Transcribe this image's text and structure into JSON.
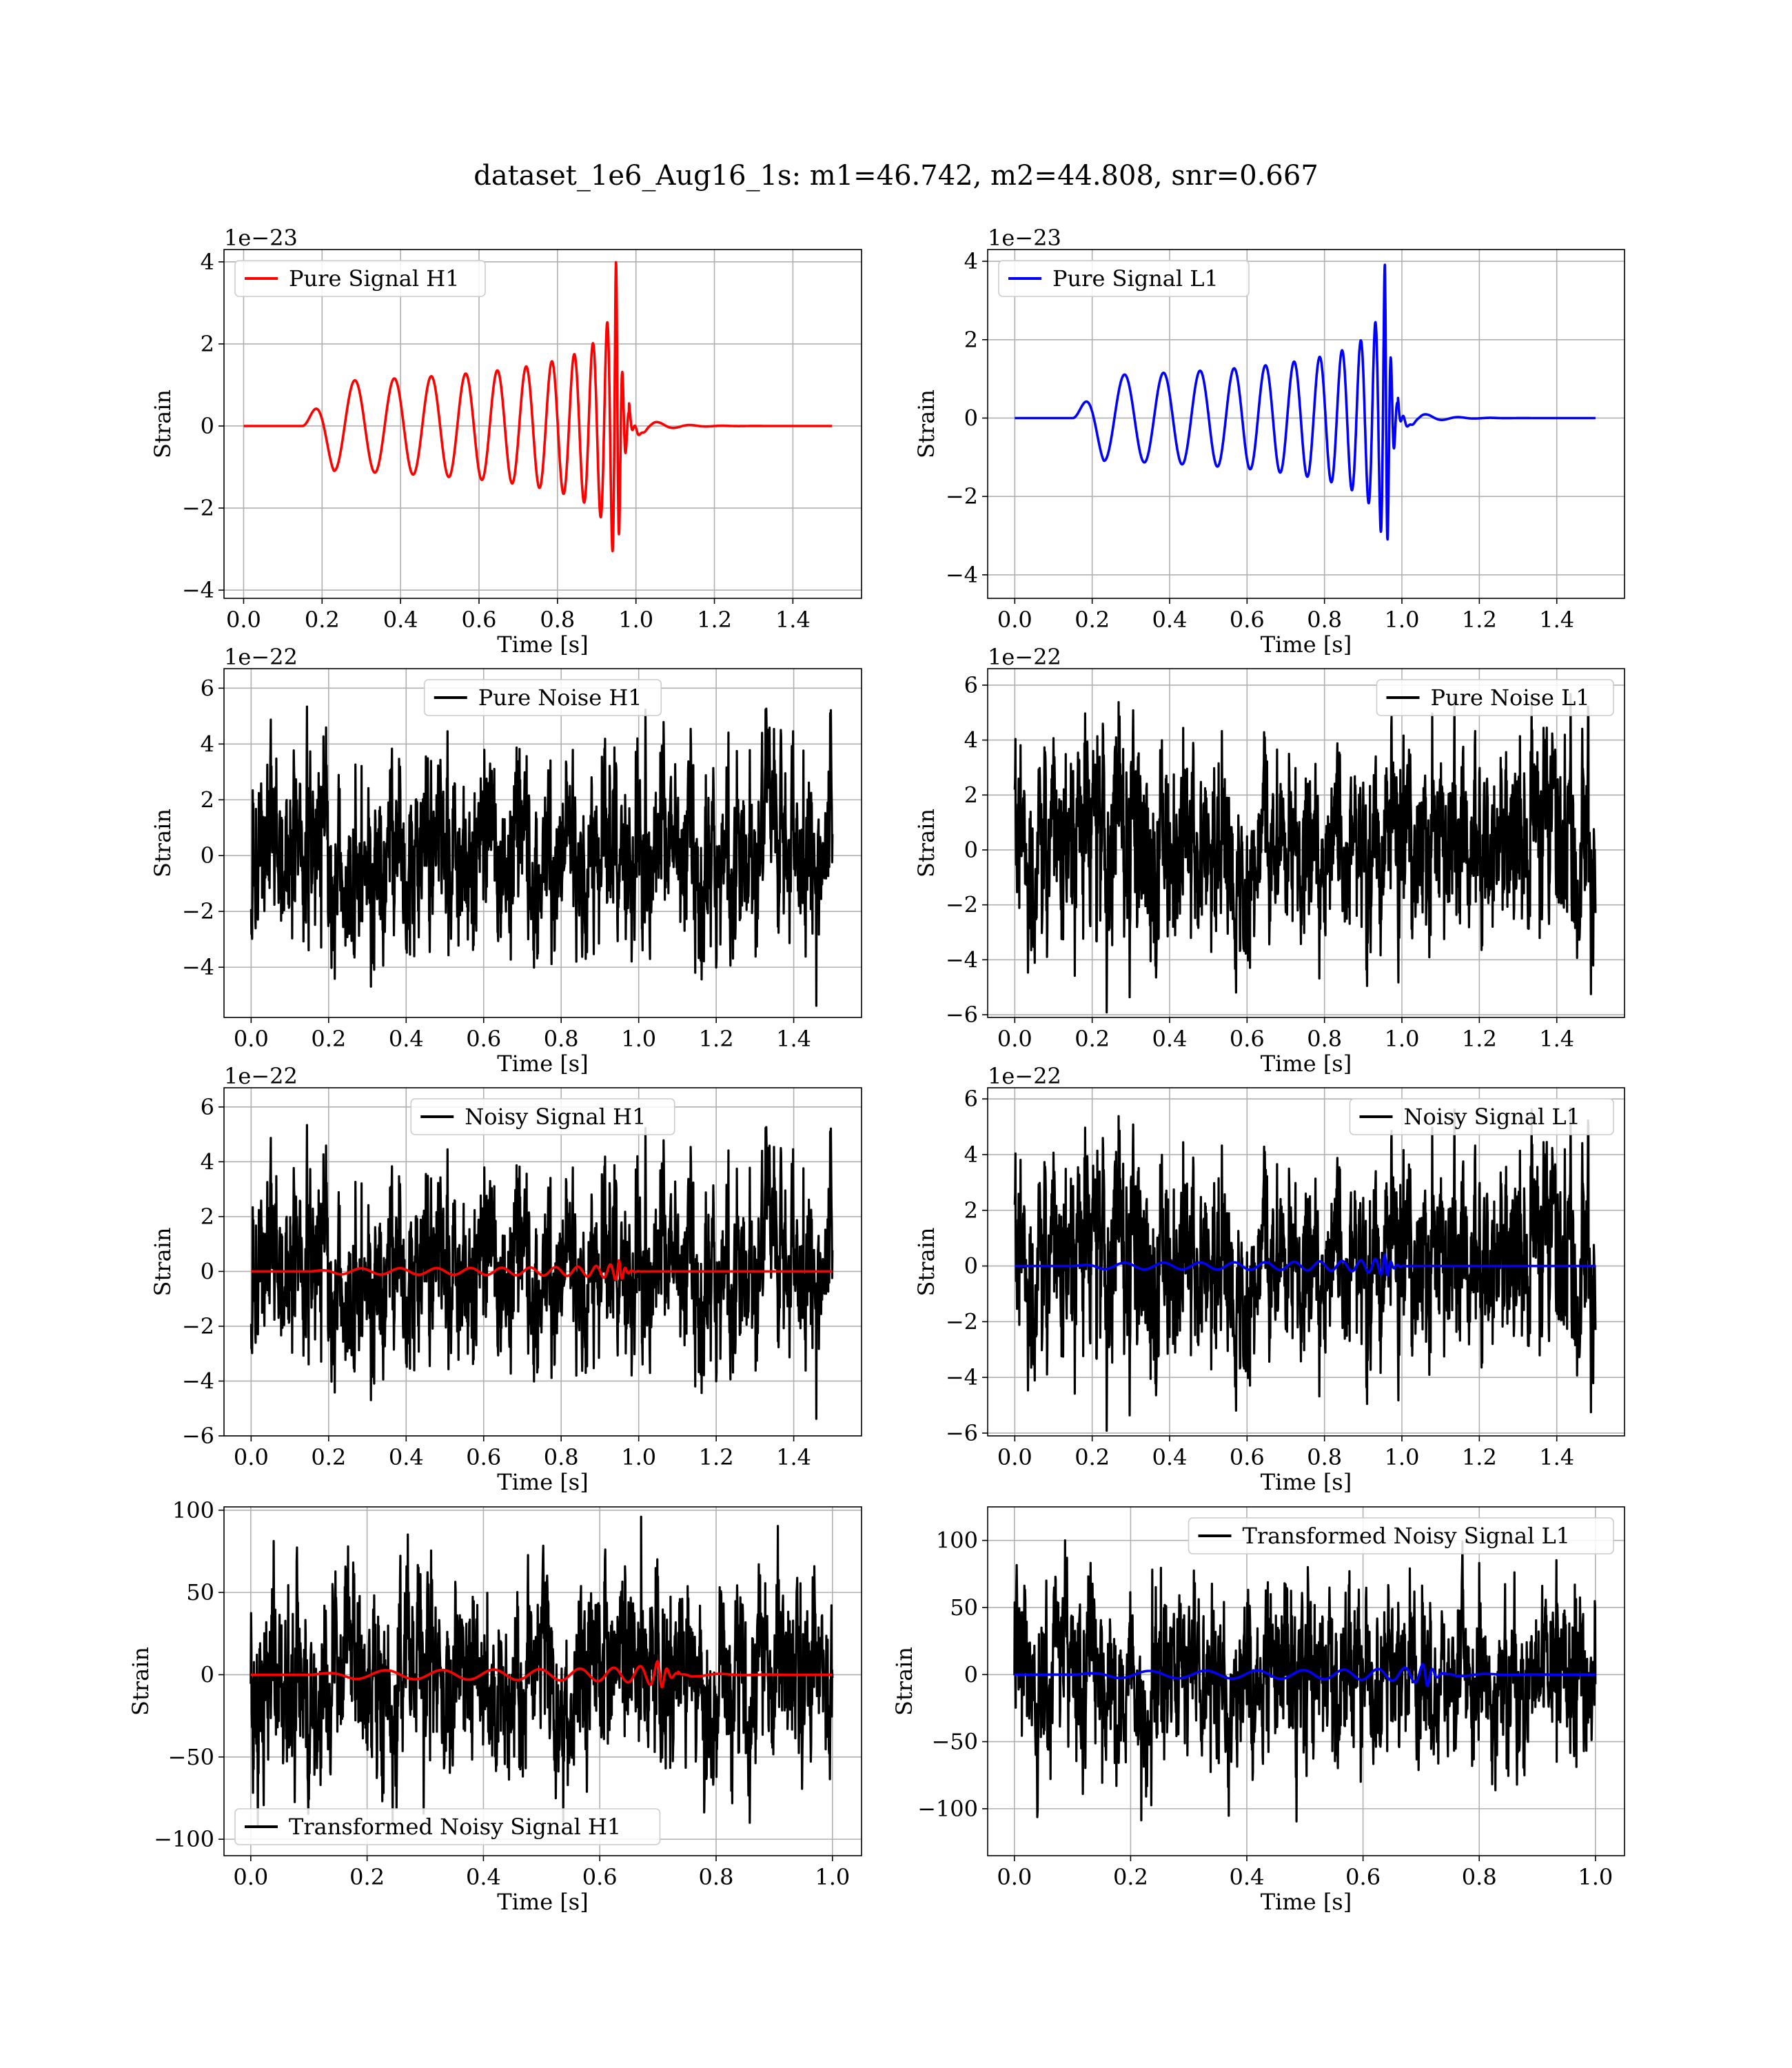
{
  "figure": {
    "title": "dataset_1e6_Aug16_1s: m1=46.742, m2=44.808, snr=0.667"
  },
  "colors": {
    "h1_signal": "#ff0000",
    "l1_signal": "#0000ff",
    "noise": "#000000",
    "grid": "#b0b0b0"
  },
  "chart_data": [
    {
      "type": "line",
      "panel": "pure-signal-h1",
      "xlabel": "Time [s]",
      "ylabel": "Strain",
      "offset_text": "1e−23",
      "xlim": [
        -0.05,
        1.575
      ],
      "ylim": [
        -4.2,
        4.3
      ],
      "x_ticks": [
        0.0,
        0.2,
        0.4,
        0.6,
        0.8,
        1.0,
        1.2,
        1.4
      ],
      "x_tick_labels": [
        "0.0",
        "0.2",
        "0.4",
        "0.6",
        "0.8",
        "1.0",
        "1.2",
        "1.4"
      ],
      "y_ticks": [
        -4,
        -2,
        0,
        2,
        4
      ],
      "y_tick_labels": [
        "−4",
        "−2",
        "0",
        "2",
        "4"
      ],
      "legend": {
        "position": "upper-left",
        "entries": [
          {
            "label": "Pure Signal H1",
            "color": "#ff0000"
          }
        ]
      },
      "series": [
        {
          "kind": "chirp",
          "color": "#ff0000",
          "t_start": 0.15,
          "t_merge": 0.952,
          "t_end": 1.5,
          "amplitude": 4.0,
          "ringdown_amp": 0.08
        }
      ]
    },
    {
      "type": "line",
      "panel": "pure-signal-l1",
      "xlabel": "Time [s]",
      "ylabel": "Strain",
      "offset_text": "1e−23",
      "xlim": [
        -0.07,
        1.575
      ],
      "ylim": [
        -4.6,
        4.3
      ],
      "x_ticks": [
        0.0,
        0.2,
        0.4,
        0.6,
        0.8,
        1.0,
        1.2,
        1.4
      ],
      "x_tick_labels": [
        "0.0",
        "0.2",
        "0.4",
        "0.6",
        "0.8",
        "1.0",
        "1.2",
        "1.4"
      ],
      "y_ticks": [
        -4,
        -2,
        0,
        2,
        4
      ],
      "y_tick_labels": [
        "−4",
        "−2",
        "0",
        "2",
        "4"
      ],
      "legend": {
        "position": "upper-left",
        "entries": [
          {
            "label": "Pure Signal L1",
            "color": "#0000ff"
          }
        ]
      },
      "series": [
        {
          "kind": "chirp",
          "color": "#0000ff",
          "t_start": 0.15,
          "t_merge": 0.96,
          "t_end": 1.5,
          "amplitude": 4.0,
          "ringdown_amp": 0.08
        }
      ]
    },
    {
      "type": "line",
      "panel": "pure-noise-h1",
      "xlabel": "Time [s]",
      "ylabel": "Strain",
      "offset_text": "1e−22",
      "xlim": [
        -0.07,
        1.575
      ],
      "ylim": [
        -5.8,
        6.7
      ],
      "x_ticks": [
        0.0,
        0.2,
        0.4,
        0.6,
        0.8,
        1.0,
        1.2,
        1.4
      ],
      "x_tick_labels": [
        "0.0",
        "0.2",
        "0.4",
        "0.6",
        "0.8",
        "1.0",
        "1.2",
        "1.4"
      ],
      "y_ticks": [
        -4,
        -2,
        0,
        2,
        4,
        6
      ],
      "y_tick_labels": [
        "−4",
        "−2",
        "0",
        "2",
        "4",
        "6"
      ],
      "legend": {
        "position": "upper-center",
        "entries": [
          {
            "label": "Pure Noise H1",
            "color": "#000000"
          }
        ]
      },
      "series": [
        {
          "kind": "noise",
          "color": "#000000",
          "t_start": 0.0,
          "t_end": 1.5,
          "sigma": 1.6,
          "clip": 6.2,
          "seed": 11
        }
      ]
    },
    {
      "type": "line",
      "panel": "pure-noise-l1",
      "xlabel": "Time [s]",
      "ylabel": "Strain",
      "offset_text": "1e−22",
      "xlim": [
        -0.07,
        1.575
      ],
      "ylim": [
        -6.1,
        6.6
      ],
      "x_ticks": [
        0.0,
        0.2,
        0.4,
        0.6,
        0.8,
        1.0,
        1.2,
        1.4
      ],
      "x_tick_labels": [
        "0.0",
        "0.2",
        "0.4",
        "0.6",
        "0.8",
        "1.0",
        "1.2",
        "1.4"
      ],
      "y_ticks": [
        -6,
        -4,
        -2,
        0,
        2,
        4,
        6
      ],
      "y_tick_labels": [
        "−6",
        "−4",
        "−2",
        "0",
        "2",
        "4",
        "6"
      ],
      "legend": {
        "position": "upper-right",
        "entries": [
          {
            "label": "Pure Noise L1",
            "color": "#000000"
          }
        ]
      },
      "series": [
        {
          "kind": "noise",
          "color": "#000000",
          "t_start": 0.0,
          "t_end": 1.5,
          "sigma": 1.7,
          "clip": 6.0,
          "seed": 23
        }
      ]
    },
    {
      "type": "line",
      "panel": "noisy-signal-h1",
      "xlabel": "Time [s]",
      "ylabel": "Strain",
      "offset_text": "1e−22",
      "xlim": [
        -0.07,
        1.575
      ],
      "ylim": [
        -6.0,
        6.7
      ],
      "x_ticks": [
        0.0,
        0.2,
        0.4,
        0.6,
        0.8,
        1.0,
        1.2,
        1.4
      ],
      "x_tick_labels": [
        "0.0",
        "0.2",
        "0.4",
        "0.6",
        "0.8",
        "1.0",
        "1.2",
        "1.4"
      ],
      "y_ticks": [
        -6,
        -4,
        -2,
        0,
        2,
        4,
        6
      ],
      "y_tick_labels": [
        "−6",
        "−4",
        "−2",
        "0",
        "2",
        "4",
        "6"
      ],
      "legend": {
        "position": "upper-center",
        "entries": [
          {
            "label": "Noisy Signal H1",
            "color": "#000000"
          }
        ]
      },
      "series": [
        {
          "kind": "noise",
          "color": "#000000",
          "t_start": 0.0,
          "t_end": 1.5,
          "sigma": 1.6,
          "clip": 6.2,
          "seed": 11
        },
        {
          "kind": "chirp",
          "color": "#ff0000",
          "t_start": 0.15,
          "t_merge": 0.952,
          "t_end": 1.5,
          "amplitude": 0.4,
          "ringdown_amp": 0.01
        }
      ]
    },
    {
      "type": "line",
      "panel": "noisy-signal-l1",
      "xlabel": "Time [s]",
      "ylabel": "Strain",
      "offset_text": "1e−22",
      "xlim": [
        -0.07,
        1.575
      ],
      "ylim": [
        -6.1,
        6.4
      ],
      "x_ticks": [
        0.0,
        0.2,
        0.4,
        0.6,
        0.8,
        1.0,
        1.2,
        1.4
      ],
      "x_tick_labels": [
        "0.0",
        "0.2",
        "0.4",
        "0.6",
        "0.8",
        "1.0",
        "1.2",
        "1.4"
      ],
      "y_ticks": [
        -6,
        -4,
        -2,
        0,
        2,
        4,
        6
      ],
      "y_tick_labels": [
        "−6",
        "−4",
        "−2",
        "0",
        "2",
        "4",
        "6"
      ],
      "legend": {
        "position": "upper-right",
        "entries": [
          {
            "label": "Noisy Signal L1",
            "color": "#000000"
          }
        ]
      },
      "series": [
        {
          "kind": "noise",
          "color": "#000000",
          "t_start": 0.0,
          "t_end": 1.5,
          "sigma": 1.7,
          "clip": 6.0,
          "seed": 23
        },
        {
          "kind": "chirp",
          "color": "#0000ff",
          "t_start": 0.15,
          "t_merge": 0.96,
          "t_end": 1.5,
          "amplitude": 0.42,
          "ringdown_amp": 0.01
        }
      ]
    },
    {
      "type": "line",
      "panel": "transformed-noisy-signal-h1",
      "xlabel": "Time [s]",
      "ylabel": "Strain",
      "offset_text": "",
      "xlim": [
        -0.046,
        1.05
      ],
      "ylim": [
        -110,
        102
      ],
      "x_ticks": [
        0.0,
        0.2,
        0.4,
        0.6,
        0.8,
        1.0
      ],
      "x_tick_labels": [
        "0.0",
        "0.2",
        "0.4",
        "0.6",
        "0.8",
        "1.0"
      ],
      "y_ticks": [
        -100,
        -50,
        0,
        50,
        100
      ],
      "y_tick_labels": [
        "−100",
        "−50",
        "0",
        "50",
        "100"
      ],
      "legend": {
        "position": "lower-left",
        "entries": [
          {
            "label": "Transformed Noisy Signal H1",
            "color": "#000000"
          }
        ]
      },
      "series": [
        {
          "kind": "noise",
          "color": "#000000",
          "t_start": 0.0,
          "t_end": 1.0,
          "sigma": 28,
          "clip": 98,
          "seed": 37
        },
        {
          "kind": "chirp",
          "color": "#ff0000",
          "t_start": 0.1,
          "t_merge": 0.705,
          "t_end": 1.0,
          "amplitude": 9.0,
          "ringdown_amp": 0.2
        }
      ]
    },
    {
      "type": "line",
      "panel": "transformed-noisy-signal-l1",
      "xlabel": "Time [s]",
      "ylabel": "Strain",
      "offset_text": "",
      "xlim": [
        -0.046,
        1.05
      ],
      "ylim": [
        -135,
        125
      ],
      "x_ticks": [
        0.0,
        0.2,
        0.4,
        0.6,
        0.8,
        1.0
      ],
      "x_tick_labels": [
        "0.0",
        "0.2",
        "0.4",
        "0.6",
        "0.8",
        "1.0"
      ],
      "y_ticks": [
        -100,
        -50,
        0,
        50,
        100
      ],
      "y_tick_labels": [
        "−100",
        "−50",
        "0",
        "50",
        "100"
      ],
      "legend": {
        "position": "upper-right",
        "entries": [
          {
            "label": "Transformed Noisy Signal L1",
            "color": "#000000"
          }
        ]
      },
      "series": [
        {
          "kind": "noise",
          "color": "#000000",
          "t_start": 0.0,
          "t_end": 1.0,
          "sigma": 30,
          "clip": 110,
          "seed": 53
        },
        {
          "kind": "chirp",
          "color": "#0000ff",
          "t_start": 0.1,
          "t_merge": 0.71,
          "t_end": 1.0,
          "amplitude": 9.0,
          "ringdown_amp": 0.2
        }
      ]
    }
  ]
}
